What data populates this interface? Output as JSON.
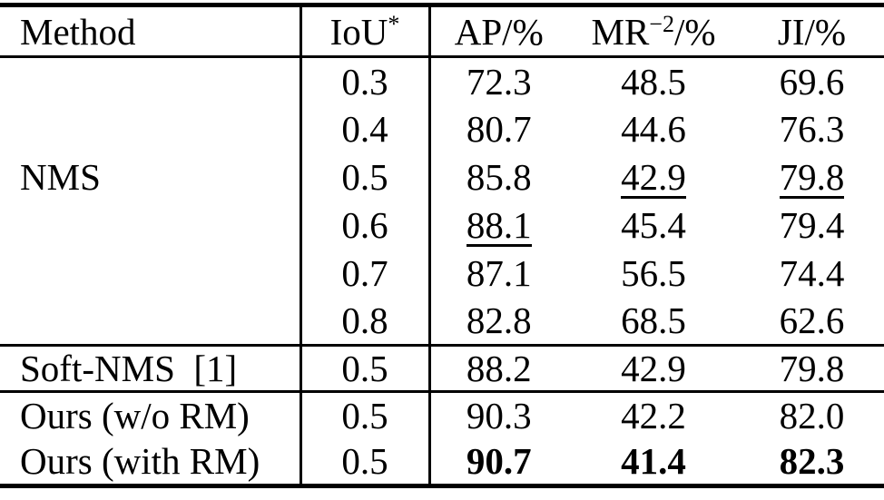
{
  "page": {
    "background": "#ffffff",
    "text_color": "#000000",
    "rule_color": "#000000"
  },
  "table": {
    "header": {
      "method": "Method",
      "iou_base": "IoU",
      "iou_sup": "*",
      "ap": "AP/%",
      "mr_base": "MR",
      "mr_sup": "−2",
      "mr_suffix": "/%",
      "ji": "JI/%"
    },
    "rows": [
      {
        "method": "NMS",
        "method_rowspan": 6,
        "iou": "0.3",
        "ap": "72.3",
        "mr": "48.5",
        "ji": "69.6"
      },
      {
        "iou": "0.4",
        "ap": "80.7",
        "mr": "44.6",
        "ji": "76.3"
      },
      {
        "iou": "0.5",
        "ap": "85.8",
        "mr": "42.9",
        "ji": "79.8",
        "mr_underline": true,
        "ji_underline": true
      },
      {
        "iou": "0.6",
        "ap": "88.1",
        "ap_underline": true,
        "mr": "45.4",
        "ji": "79.4"
      },
      {
        "iou": "0.7",
        "ap": "87.1",
        "mr": "56.5",
        "ji": "74.4"
      },
      {
        "iou": "0.8",
        "ap": "82.8",
        "mr": "68.5",
        "ji": "62.6"
      },
      {
        "method": "Soft-NMS  [1]",
        "iou": "0.5",
        "ap": "88.2",
        "mr": "42.9",
        "ji": "79.8",
        "section_start": true,
        "row_class": "row-soft"
      },
      {
        "method": "Ours (w/o RM)",
        "iou": "0.5",
        "ap": "90.3",
        "mr": "42.2",
        "ji": "82.0",
        "section_start": true,
        "row_class": "row-ours"
      },
      {
        "method": "Ours (with RM)",
        "iou": "0.5",
        "ap": "90.7",
        "mr": "41.4",
        "ji": "82.3",
        "metrics_bold": true,
        "row_class": "row-ours"
      }
    ]
  }
}
